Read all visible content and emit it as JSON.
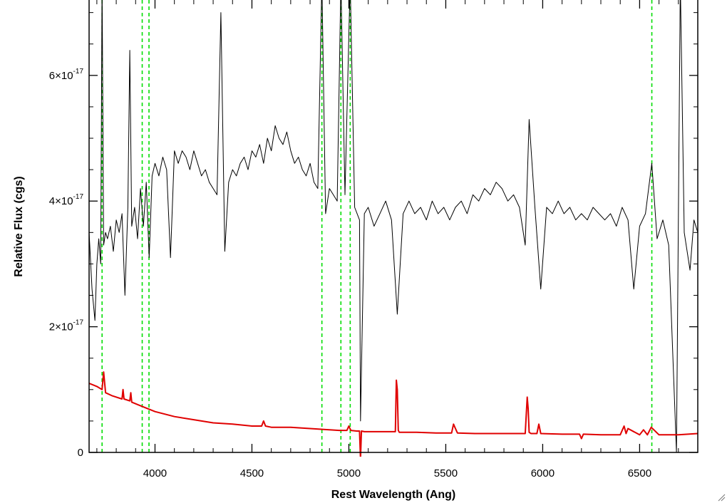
{
  "chart_data": {
    "type": "line",
    "title": "",
    "xlabel": "Rest Wavelength (Ang)",
    "ylabel": "Relative Flux (cgs)",
    "xlim": [
      3660,
      6800
    ],
    "ylim": [
      0,
      7.2e-17
    ],
    "x_ticks": [
      {
        "value": 4000,
        "label": "4000"
      },
      {
        "value": 4500,
        "label": "4500"
      },
      {
        "value": 5000,
        "label": "5000"
      },
      {
        "value": 5500,
        "label": "5500"
      },
      {
        "value": 6000,
        "label": "6000"
      },
      {
        "value": 6500,
        "label": "6500"
      }
    ],
    "y_ticks": [
      {
        "value": 0,
        "mantissa": "0",
        "exponent": ""
      },
      {
        "value": 2e-17,
        "mantissa": "2×10",
        "exponent": "-17"
      },
      {
        "value": 4e-17,
        "mantissa": "4×10",
        "exponent": "-17"
      },
      {
        "value": 6e-17,
        "mantissa": "6×10",
        "exponent": "-17"
      }
    ],
    "grid": false,
    "colors": {
      "spectrum": "#000000",
      "error": "#e00000",
      "lines": "#00dd00",
      "axes": "#000000"
    },
    "line_markers": [
      3727,
      3934,
      3969,
      4861,
      4959,
      5007,
      6563
    ],
    "series": [
      {
        "id": "spectrum",
        "x": [
          3660,
          3675,
          3690,
          3700,
          3710,
          3720,
          3727,
          3735,
          3745,
          3755,
          3770,
          3785,
          3800,
          3815,
          3830,
          3845,
          3860,
          3870,
          3880,
          3895,
          3910,
          3925,
          3940,
          3955,
          3970,
          3985,
          4000,
          4020,
          4040,
          4060,
          4080,
          4100,
          4120,
          4140,
          4160,
          4180,
          4200,
          4220,
          4240,
          4260,
          4280,
          4300,
          4320,
          4340,
          4360,
          4380,
          4400,
          4420,
          4440,
          4460,
          4480,
          4500,
          4520,
          4540,
          4560,
          4580,
          4600,
          4620,
          4640,
          4660,
          4680,
          4700,
          4720,
          4740,
          4760,
          4780,
          4800,
          4820,
          4840,
          4861,
          4880,
          4900,
          4920,
          4940,
          4959,
          4980,
          5007,
          5030,
          5055,
          5060,
          5080,
          5100,
          5130,
          5160,
          5190,
          5220,
          5250,
          5280,
          5310,
          5340,
          5370,
          5400,
          5430,
          5460,
          5490,
          5520,
          5550,
          5580,
          5610,
          5640,
          5670,
          5700,
          5730,
          5760,
          5790,
          5820,
          5850,
          5880,
          5910,
          5930,
          5960,
          5990,
          6020,
          6050,
          6080,
          6110,
          6140,
          6170,
          6200,
          6230,
          6260,
          6290,
          6320,
          6350,
          6380,
          6410,
          6440,
          6470,
          6500,
          6530,
          6563,
          6590,
          6620,
          6650,
          6690,
          6710,
          6730,
          6760,
          6780,
          6800
        ],
        "y": [
          3.5e-17,
          2.6e-17,
          2.1e-17,
          3e-17,
          3.4e-17,
          3e-17,
          7.5e-17,
          3.3e-17,
          3.5e-17,
          3.4e-17,
          3.6e-17,
          3.2e-17,
          3.7e-17,
          3.5e-17,
          3.8e-17,
          2.5e-17,
          3.9e-17,
          6.4e-17,
          3.6e-17,
          3.9e-17,
          3.4e-17,
          4.2e-17,
          3.6e-17,
          4.3e-17,
          3.1e-17,
          4.4e-17,
          4.6e-17,
          4.4e-17,
          4.7e-17,
          4.5e-17,
          3.1e-17,
          4.8e-17,
          4.6e-17,
          4.8e-17,
          4.7e-17,
          4.5e-17,
          4.8e-17,
          4.6e-17,
          4.4e-17,
          4.5e-17,
          4.3e-17,
          4.2e-17,
          4.1e-17,
          7e-17,
          3.2e-17,
          4.3e-17,
          4.5e-17,
          4.4e-17,
          4.6e-17,
          4.7e-17,
          4.5e-17,
          4.8e-17,
          4.7e-17,
          4.9e-17,
          4.6e-17,
          5e-17,
          4.8e-17,
          5.2e-17,
          5e-17,
          4.9e-17,
          5.1e-17,
          4.8e-17,
          4.6e-17,
          4.7e-17,
          4.5e-17,
          4.4e-17,
          4.6e-17,
          4.3e-17,
          4.2e-17,
          7.5e-17,
          3.8e-17,
          4.2e-17,
          4.1e-17,
          4e-17,
          7.5e-17,
          4.1e-17,
          7.5e-17,
          3.9e-17,
          3.7e-17,
          5e-18,
          3.8e-17,
          3.9e-17,
          3.6e-17,
          3.8e-17,
          4e-17,
          3.7e-17,
          2.2e-17,
          3.8e-17,
          4e-17,
          3.8e-17,
          3.9e-17,
          3.7e-17,
          4e-17,
          3.8e-17,
          3.9e-17,
          3.7e-17,
          3.9e-17,
          4e-17,
          3.8e-17,
          4.1e-17,
          4e-17,
          4.2e-17,
          4.1e-17,
          4.3e-17,
          4.2e-17,
          4e-17,
          4.1e-17,
          3.9e-17,
          3.3e-17,
          5.3e-17,
          3.9e-17,
          2.6e-17,
          3.9e-17,
          3.8e-17,
          4e-17,
          3.8e-17,
          3.9e-17,
          3.7e-17,
          3.8e-17,
          3.7e-17,
          3.9e-17,
          3.8e-17,
          3.7e-17,
          3.8e-17,
          3.6e-17,
          3.9e-17,
          3.7e-17,
          2.6e-17,
          3.6e-17,
          3.8e-17,
          4.6e-17,
          3.4e-17,
          3.7e-17,
          3.3e-17,
          0.0,
          7.5e-17,
          3.5e-17,
          2.9e-17,
          3.7e-17,
          3.5e-17
        ]
      },
      {
        "id": "error",
        "x": [
          3660,
          3700,
          3727,
          3735,
          3745,
          3780,
          3830,
          3835,
          3840,
          3870,
          3875,
          3880,
          3920,
          3960,
          4000,
          4100,
          4200,
          4300,
          4400,
          4500,
          4550,
          4560,
          4570,
          4600,
          4700,
          4800,
          4850,
          4900,
          4950,
          4990,
          5000,
          5010,
          5040,
          5055,
          5060,
          5065,
          5080,
          5150,
          5240,
          5245,
          5250,
          5255,
          5260,
          5350,
          5450,
          5530,
          5540,
          5550,
          5560,
          5650,
          5750,
          5850,
          5910,
          5920,
          5925,
          5930,
          5940,
          5970,
          5980,
          5990,
          6100,
          6190,
          6200,
          6210,
          6300,
          6400,
          6420,
          6430,
          6440,
          6500,
          6520,
          6540,
          6560,
          6600,
          6700,
          6800
        ],
        "y": [
          1.1e-17,
          1.05e-17,
          1e-17,
          1.28e-17,
          9.5e-18,
          9e-18,
          8.5e-18,
          1e-17,
          8.5e-18,
          8.2e-18,
          9.5e-18,
          8e-18,
          7.5e-18,
          7e-18,
          6.5e-18,
          5.7e-18,
          5.2e-18,
          4.7e-18,
          4.5e-18,
          4.2e-18,
          4.2e-18,
          5e-18,
          4.2e-18,
          4e-18,
          4e-18,
          3.8e-18,
          3.7e-18,
          3.6e-18,
          3.5e-18,
          3.5e-18,
          4.2e-18,
          3.5e-18,
          3.4e-18,
          3.4e-18,
          -1e-18,
          3.4e-18,
          3.3e-18,
          3.3e-18,
          3.3e-18,
          1.15e-17,
          1e-17,
          3.5e-18,
          3.2e-18,
          3.2e-18,
          3.1e-18,
          3.1e-18,
          4.5e-18,
          3.8e-18,
          3.1e-18,
          3e-18,
          3e-18,
          3e-18,
          3e-18,
          8.8e-18,
          7e-18,
          3.2e-18,
          3e-18,
          3e-18,
          4.5e-18,
          3e-18,
          2.9e-18,
          2.9e-18,
          2.2e-18,
          2.9e-18,
          2.8e-18,
          2.8e-18,
          4.2e-18,
          3e-18,
          3.8e-18,
          2.8e-18,
          3.6e-18,
          2.8e-18,
          4e-18,
          2.8e-18,
          2.8e-18,
          3e-18
        ]
      }
    ]
  }
}
